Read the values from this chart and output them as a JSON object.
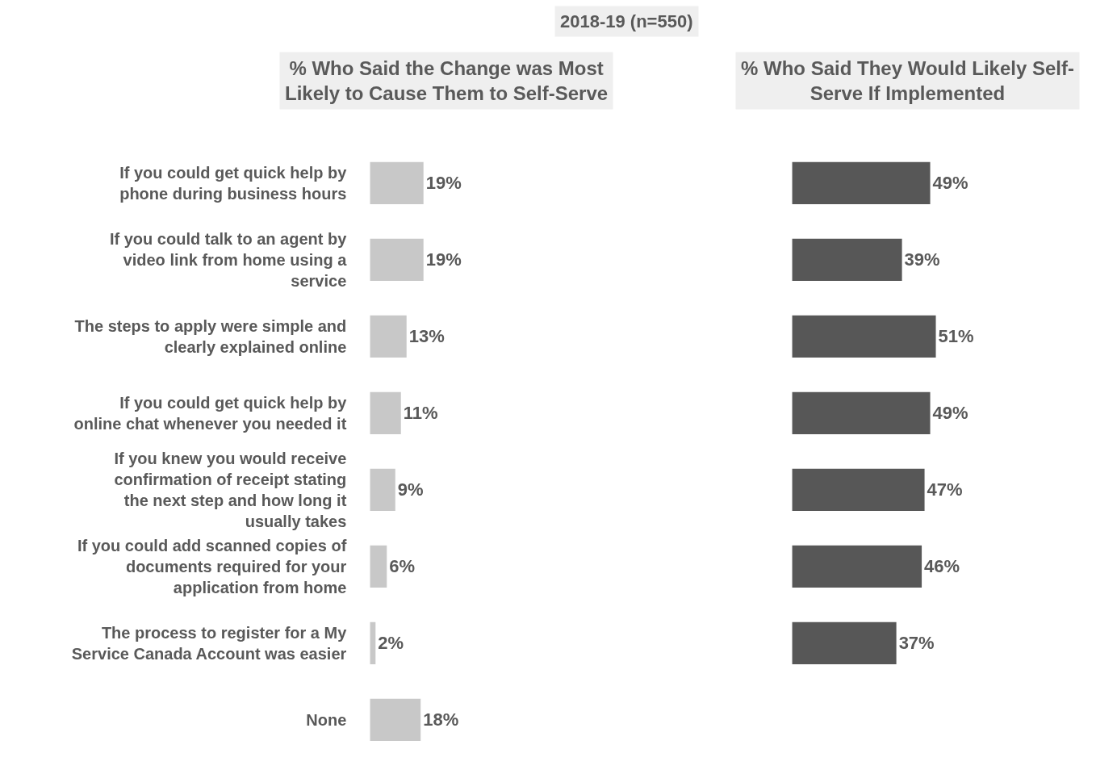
{
  "chart_data": [
    {
      "type": "bar",
      "orientation": "horizontal",
      "title": "% Who Said the Change was Most Likely to Cause Them to Self-Serve",
      "annotations": [
        "2018-19 (n=550)"
      ],
      "categories": [
        "If you could get quick help by phone during business hours",
        "If you could talk to an agent by video link from home using a service",
        "The steps to apply were simple and clearly explained online",
        "If you could get quick help by online chat whenever you needed it",
        "If you knew you would receive confirmation of receipt stating the next step and how long it usually takes",
        "If you could add scanned copies of documents required for your application from home",
        "The process to register for a My Service Canada Account was easier",
        "None"
      ],
      "values": [
        19,
        19,
        13,
        11,
        9,
        6,
        2,
        18
      ],
      "value_labels": [
        "19%",
        "19%",
        "13%",
        "11%",
        "9%",
        "6%",
        "2%",
        "18%"
      ],
      "color": "#c8c8c8"
    },
    {
      "type": "bar",
      "orientation": "horizontal",
      "title": "% Who Said They Would Likely Self-Serve If Implemented",
      "categories": [
        null,
        null,
        null,
        null,
        null,
        null,
        null,
        null
      ],
      "values": [
        49,
        39,
        51,
        49,
        47,
        46,
        37,
        null
      ],
      "value_labels": [
        "49%",
        "39%",
        "51%",
        "49%",
        "47%",
        "46%",
        "37%",
        null
      ],
      "color": "#575757"
    }
  ]
}
